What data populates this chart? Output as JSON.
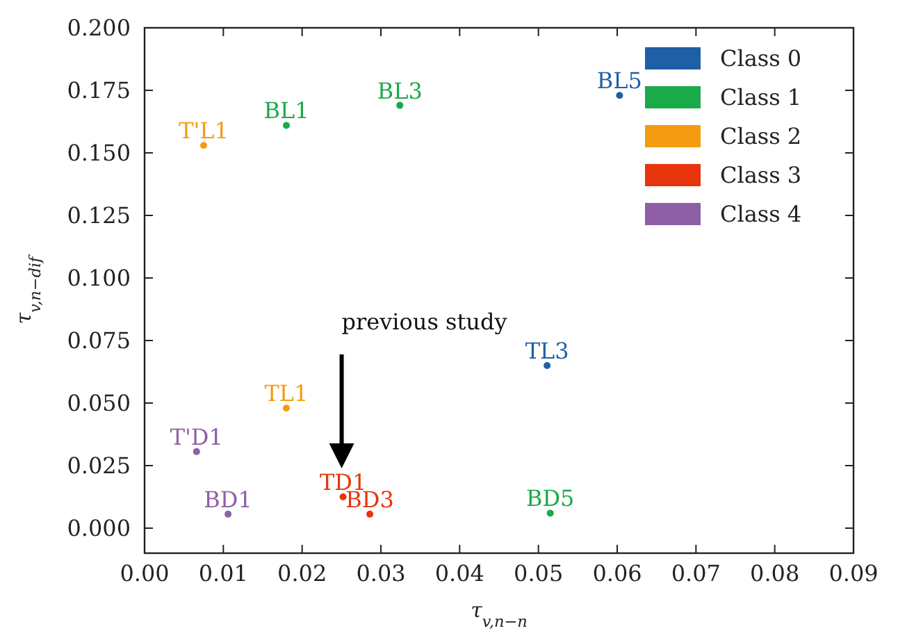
{
  "chart_data": {
    "type": "scatter",
    "xlabel": "τ$_{v,n−n}$",
    "ylabel": "τ$_{v,n−dif}$",
    "xlim": [
      0,
      0.09
    ],
    "ylim": [
      -0.01,
      0.2
    ],
    "xticks": [
      {
        "value": 0,
        "label": "0.00"
      },
      {
        "value": 0.01,
        "label": "0.01"
      },
      {
        "value": 0.02,
        "label": "0.02"
      },
      {
        "value": 0.03,
        "label": "0.03"
      },
      {
        "value": 0.04,
        "label": "0.04"
      },
      {
        "value": 0.05,
        "label": "0.05"
      },
      {
        "value": 0.06,
        "label": "0.06"
      },
      {
        "value": 0.07,
        "label": "0.07"
      },
      {
        "value": 0.08,
        "label": "0.08"
      },
      {
        "value": 0.09,
        "label": "0.09"
      }
    ],
    "yticks": [
      {
        "value": 0,
        "label": "0.000"
      },
      {
        "value": 0.025,
        "label": "0.025"
      },
      {
        "value": 0.05,
        "label": "0.050"
      },
      {
        "value": 0.075,
        "label": "0.075"
      },
      {
        "value": 0.1,
        "label": "0.100"
      },
      {
        "value": 0.125,
        "label": "0.125"
      },
      {
        "value": 0.15,
        "label": "0.150"
      },
      {
        "value": 0.175,
        "label": "0.175"
      },
      {
        "value": 0.2,
        "label": "0.200"
      }
    ],
    "marker": "circle",
    "legend": "top right",
    "grid": false,
    "series": [
      {
        "name": "Class 0",
        "color": "#1f5fa6",
        "x": [
          0.0603,
          0.0511
        ],
        "values": [
          0.173,
          0.065
        ],
        "value_labels": [
          "BL5",
          "TL3"
        ]
      },
      {
        "name": "Class 1",
        "color": "#1aaa4a",
        "x": [
          0.018,
          0.0324,
          0.0515
        ],
        "values": [
          0.161,
          0.169,
          0.006
        ],
        "value_labels": [
          "BL1",
          "BL3",
          "BD5"
        ]
      },
      {
        "name": "Class 2",
        "color": "#f39c12",
        "x": [
          0.0075,
          0.018
        ],
        "values": [
          0.153,
          0.048
        ],
        "value_labels": [
          "T'L1",
          "TL1"
        ]
      },
      {
        "name": "Class 3",
        "color": "#e8340c",
        "x": [
          0.0252,
          0.0286
        ],
        "values": [
          0.0125,
          0.0056
        ],
        "value_labels": [
          "TD1",
          "BD3"
        ]
      },
      {
        "name": "Class 4",
        "color": "#8e5fa5",
        "x": [
          0.0066,
          0.0106
        ],
        "values": [
          0.0306,
          0.0056
        ],
        "value_labels": [
          "T'D1",
          "BD1"
        ]
      }
    ],
    "annotations": [
      "previous study"
    ]
  }
}
